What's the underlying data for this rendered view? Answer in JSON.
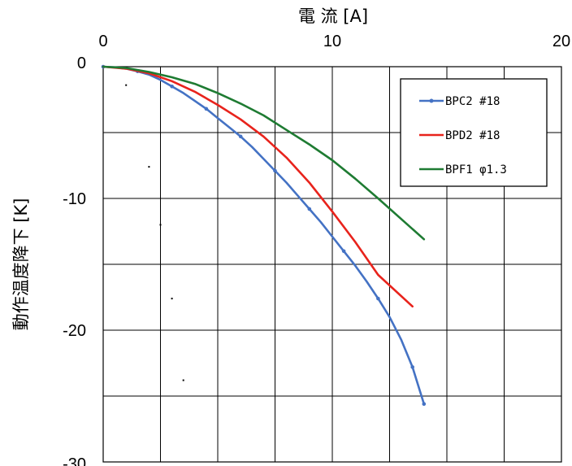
{
  "chart_data": {
    "type": "line",
    "xlabel": "電 流 [A]",
    "ylabel": "動作温度降下 [K]",
    "xlim": [
      0,
      20
    ],
    "ylim": [
      -30,
      0
    ],
    "x_ticks": [
      "0",
      "10",
      "20"
    ],
    "y_ticks": [
      "0",
      "-10",
      "-20",
      "-30"
    ],
    "grid": true,
    "x_axis_position": "top",
    "legend_position": "top-right",
    "series": [
      {
        "name": "BPC2 #18",
        "color": "#4472c4",
        "markers": true,
        "x": [
          0,
          0.5,
          1,
          1.5,
          2,
          2.5,
          3,
          3.5,
          4,
          4.5,
          5,
          5.5,
          6,
          6.5,
          7,
          7.5,
          8,
          8.5,
          9,
          9.5,
          10,
          10.5,
          11,
          11.5,
          12,
          12.5,
          13,
          13.5,
          14
        ],
        "y": [
          0,
          -0.05,
          -0.15,
          -0.35,
          -0.6,
          -1.0,
          -1.5,
          -2.0,
          -2.6,
          -3.2,
          -3.9,
          -4.6,
          -5.3,
          -6.1,
          -7.0,
          -7.9,
          -8.8,
          -9.8,
          -10.8,
          -11.8,
          -12.9,
          -14.0,
          -15.1,
          -16.3,
          -17.6,
          -19.0,
          -20.7,
          -22.8,
          -25.6
        ]
      },
      {
        "name": "BPD2 #18",
        "color": "#e8231c",
        "markers": false,
        "x": [
          0,
          1,
          2,
          3,
          4,
          5,
          6,
          7,
          8,
          9,
          10,
          11,
          12,
          13.5
        ],
        "y": [
          0,
          -0.15,
          -0.5,
          -1.1,
          -1.9,
          -2.9,
          -4.0,
          -5.3,
          -6.9,
          -8.8,
          -11.0,
          -13.3,
          -15.8,
          -18.2
        ]
      },
      {
        "name": "BPF1 φ1.3",
        "color": "#1e7b32",
        "markers": false,
        "x": [
          0,
          1,
          2,
          3,
          4,
          5,
          6,
          7,
          8,
          9,
          10,
          11,
          12,
          14
        ],
        "y": [
          0,
          -0.1,
          -0.4,
          -0.8,
          -1.3,
          -2.0,
          -2.8,
          -3.7,
          -4.8,
          -5.9,
          -7.1,
          -8.5,
          -10.0,
          -13.1
        ]
      }
    ],
    "stray_points": [
      {
        "x": 1.0,
        "y": -1.4
      },
      {
        "x": 2.0,
        "y": -7.6
      },
      {
        "x": 2.5,
        "y": -12.0
      },
      {
        "x": 3.0,
        "y": -17.6
      },
      {
        "x": 3.5,
        "y": -23.8
      }
    ]
  }
}
